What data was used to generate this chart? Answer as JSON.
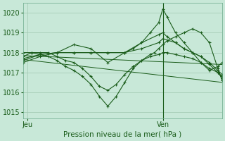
{
  "title": "Pression niveau de la mer( hPa )",
  "ylim": [
    1014.7,
    1020.5
  ],
  "yticks": [
    1015,
    1016,
    1017,
    1018,
    1019,
    1020
  ],
  "xlim": [
    0,
    47
  ],
  "xtick_positions": [
    1,
    33
  ],
  "xtick_labels": [
    "Jeu",
    "Ven"
  ],
  "background_color": "#c8e8d8",
  "grid_color": "#a0c8b0",
  "line_color": "#1a5c1a",
  "vline_x": 33,
  "series": [
    {
      "x": [
        0,
        47
      ],
      "y": [
        1017.85,
        1017.4
      ],
      "marker": null,
      "lw": 0.7
    },
    {
      "x": [
        0,
        47
      ],
      "y": [
        1017.65,
        1016.5
      ],
      "marker": null,
      "lw": 0.7
    },
    {
      "x": [
        0,
        2,
        4,
        6,
        8,
        10,
        12,
        14,
        16,
        18,
        20,
        22,
        24,
        26,
        28,
        30,
        32,
        33,
        34,
        36,
        38,
        40,
        42,
        44,
        46,
        47
      ],
      "y": [
        1017.8,
        1018.0,
        1018.0,
        1018.0,
        1017.8,
        1017.6,
        1017.5,
        1017.2,
        1016.8,
        1016.3,
        1016.1,
        1016.4,
        1016.9,
        1017.3,
        1017.6,
        1017.8,
        1017.9,
        1018.0,
        1018.0,
        1017.9,
        1017.8,
        1017.7,
        1017.5,
        1017.2,
        1017.0,
        1016.8
      ],
      "marker": "+",
      "lw": 0.8
    },
    {
      "x": [
        0,
        2,
        4,
        6,
        8,
        10,
        12,
        14,
        16,
        18,
        20,
        22,
        24,
        26,
        28,
        30,
        31,
        32,
        33,
        34,
        36,
        38,
        40,
        42,
        44,
        46,
        47
      ],
      "y": [
        1018.0,
        1018.0,
        1017.9,
        1017.8,
        1017.6,
        1017.3,
        1017.1,
        1016.8,
        1016.4,
        1015.8,
        1015.3,
        1015.8,
        1016.5,
        1017.2,
        1017.6,
        1017.9,
        1018.0,
        1018.2,
        1018.4,
        1018.6,
        1018.8,
        1019.0,
        1019.2,
        1019.0,
        1018.5,
        1017.2,
        1016.6
      ],
      "marker": "+",
      "lw": 0.8
    },
    {
      "x": [
        0,
        4,
        8,
        12,
        16,
        20,
        24,
        26,
        28,
        30,
        32,
        33,
        34,
        36,
        38,
        40,
        42,
        44,
        46,
        47
      ],
      "y": [
        1017.7,
        1017.9,
        1018.0,
        1018.4,
        1018.2,
        1017.5,
        1018.0,
        1018.2,
        1018.5,
        1019.0,
        1019.5,
        1020.2,
        1019.8,
        1019.0,
        1018.5,
        1018.0,
        1017.5,
        1017.1,
        1017.3,
        1017.5
      ],
      "marker": "+",
      "lw": 0.8
    },
    {
      "x": [
        0,
        4,
        8,
        12,
        16,
        20,
        24,
        28,
        32,
        33,
        34,
        36,
        38,
        40,
        42,
        44,
        46,
        47
      ],
      "y": [
        1017.6,
        1017.9,
        1018.0,
        1018.0,
        1018.0,
        1018.0,
        1018.0,
        1018.5,
        1018.9,
        1019.0,
        1018.8,
        1018.5,
        1018.2,
        1018.0,
        1017.8,
        1017.4,
        1017.0,
        1016.7
      ],
      "marker": "+",
      "lw": 0.8
    },
    {
      "x": [
        0,
        4,
        8,
        12,
        16,
        20,
        24,
        28,
        32,
        33,
        36,
        38,
        40,
        42,
        44,
        46,
        47
      ],
      "y": [
        1017.5,
        1017.8,
        1018.0,
        1018.0,
        1018.0,
        1018.0,
        1018.0,
        1018.2,
        1018.5,
        1018.7,
        1018.5,
        1018.2,
        1018.0,
        1017.8,
        1017.5,
        1017.1,
        1016.9
      ],
      "marker": "+",
      "lw": 0.8
    }
  ]
}
